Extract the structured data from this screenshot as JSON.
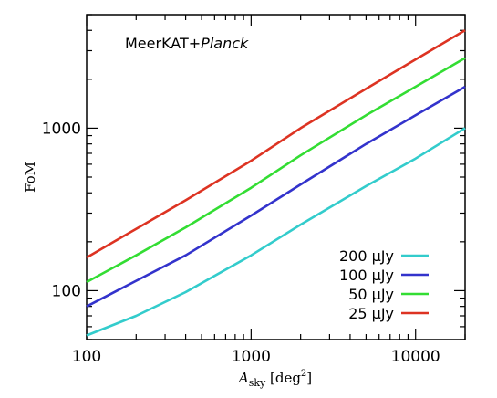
{
  "chart_data": {
    "type": "line",
    "annotation": {
      "prefix": "MeerKAT+",
      "italic": "Planck"
    },
    "xlabel": {
      "main": "A",
      "sub": "sky",
      "unit_open": " [deg",
      "unit_sup": "2",
      "unit_close": "]"
    },
    "ylabel": "FoM",
    "xscale": "log",
    "yscale": "log",
    "xlim": [
      100,
      20000
    ],
    "ylim": [
      50,
      5000
    ],
    "x_ticks": [
      {
        "value": 100,
        "label": "100"
      },
      {
        "value": 1000,
        "label": "1000"
      },
      {
        "value": 10000,
        "label": "10000"
      }
    ],
    "y_ticks": [
      {
        "value": 100,
        "label": "100"
      },
      {
        "value": 1000,
        "label": "1000"
      }
    ],
    "legend_position": "bottom-right",
    "series": [
      {
        "name": "200 μJy",
        "color": "#33cccc",
        "x": [
          100,
          200,
          400,
          1000,
          2000,
          5000,
          10000,
          20000
        ],
        "y": [
          53,
          70,
          98,
          165,
          255,
          440,
          650,
          1000
        ]
      },
      {
        "name": "100 μJy",
        "color": "#3333cc",
        "x": [
          100,
          200,
          400,
          1000,
          2000,
          5000,
          10000,
          20000
        ],
        "y": [
          80,
          115,
          165,
          290,
          450,
          800,
          1200,
          1800
        ]
      },
      {
        "name": "50 μJy",
        "color": "#33dd33",
        "x": [
          100,
          200,
          400,
          1000,
          2000,
          5000,
          10000,
          20000
        ],
        "y": [
          113,
          165,
          245,
          430,
          680,
          1200,
          1800,
          2700
        ]
      },
      {
        "name": "25 μJy",
        "color": "#dd3322",
        "x": [
          100,
          200,
          400,
          1000,
          2000,
          5000,
          10000,
          20000
        ],
        "y": [
          160,
          240,
          360,
          630,
          1000,
          1750,
          2650,
          4000
        ]
      }
    ]
  }
}
